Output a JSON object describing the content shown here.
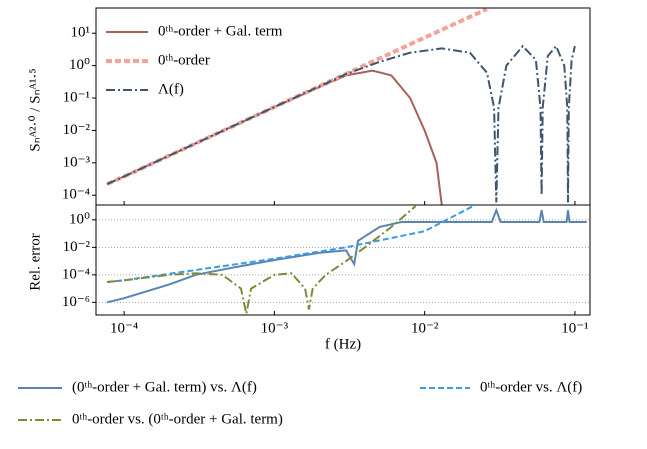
{
  "chart_data": [
    {
      "type": "line",
      "xscale": "log",
      "yscale": "log",
      "ylabel": "Sₙᴬ²·⁰ / Sₙᴬ¹·⁵",
      "xlim": [
        6.5e-05,
        0.126
      ],
      "ylim": [
        5e-05,
        60
      ],
      "yticks": [
        {
          "value": 0.0001,
          "label": "10⁻⁴"
        },
        {
          "value": 0.001,
          "label": "10⁻³"
        },
        {
          "value": 0.01,
          "label": "10⁻²"
        },
        {
          "value": 0.1,
          "label": "10⁻¹"
        },
        {
          "value": 1,
          "label": "10⁰"
        },
        {
          "value": 10,
          "label": "10¹"
        }
      ],
      "grid": false,
      "legend": "upper left",
      "series": [
        {
          "name": "0ᵗʰ-order + Gal. term",
          "color": "#a8605a",
          "linestyle": "solid",
          "x": [
            7.7e-05,
            0.0001,
            0.001,
            0.003,
            0.0045,
            0.006,
            0.008,
            0.01,
            0.012,
            0.013
          ],
          "values": [
            0.00022,
            0.00038,
            0.053,
            0.5,
            0.7,
            0.5,
            0.1,
            0.01,
            0.001,
            5e-05
          ]
        },
        {
          "name": "0ᵗʰ-order",
          "color": "#f4a39a",
          "linestyle": "dashed",
          "x": [
            7.7e-05,
            0.0001,
            0.001,
            0.01,
            0.026
          ],
          "values": [
            0.00022,
            0.00038,
            0.053,
            7.3,
            56
          ]
        },
        {
          "name": "Λ(f)",
          "color": "#3d5570",
          "linestyle": "dashdot",
          "x": [
            7.7e-05,
            0.0001,
            0.001,
            0.003,
            0.005,
            0.008,
            0.013,
            0.02,
            0.026,
            0.029,
            0.03,
            0.031,
            0.035,
            0.045,
            0.055,
            0.059,
            0.06,
            0.061,
            0.066,
            0.075,
            0.085,
            0.089,
            0.09,
            0.091,
            0.095,
            0.1
          ],
          "values": [
            0.00022,
            0.00038,
            0.053,
            0.55,
            1.3,
            2.5,
            3.4,
            2.5,
            0.6,
            0.05,
            6e-05,
            0.05,
            1,
            4,
            1.5,
            0.05,
            0.0001,
            0.05,
            2,
            4,
            1,
            0.05,
            6e-05,
            0.05,
            1.5,
            4
          ]
        }
      ]
    },
    {
      "type": "line",
      "xscale": "log",
      "yscale": "log",
      "xlabel": "f (Hz)",
      "ylabel": "Rel. error",
      "xlim": [
        6.5e-05,
        0.126
      ],
      "ylim": [
        1.2e-07,
        12
      ],
      "xticks": [
        {
          "value": 0.0001,
          "label": "10⁻⁴"
        },
        {
          "value": 0.001,
          "label": "10⁻³"
        },
        {
          "value": 0.01,
          "label": "10⁻²"
        },
        {
          "value": 0.1,
          "label": "10⁻¹"
        }
      ],
      "yticks": [
        {
          "value": 1e-06,
          "label": "10⁻⁶"
        },
        {
          "value": 0.0001,
          "label": "10⁻⁴"
        },
        {
          "value": 0.01,
          "label": "10⁻²"
        },
        {
          "value": 1,
          "label": "10⁰"
        }
      ],
      "grid": true,
      "legend": "below",
      "series": [
        {
          "name": "(0ᵗʰ-order + Gal. term) vs. Λ(f)",
          "color": "#5b84b1",
          "linestyle": "solid",
          "x": [
            7.7e-05,
            0.0001,
            0.0002,
            0.0003,
            0.0005,
            0.001,
            0.002,
            0.003,
            0.0034,
            0.0036,
            0.005,
            0.007,
            0.01,
            0.028,
            0.03,
            0.032,
            0.058,
            0.06,
            0.062,
            0.088,
            0.09,
            0.092,
            0.12
          ],
          "values": [
            1e-06,
            2e-06,
            2e-05,
            0.0001,
            0.0003,
            0.0012,
            0.004,
            0.006,
            0.0006,
            0.03,
            0.3,
            0.7,
            0.7,
            0.7,
            5,
            0.7,
            0.7,
            5,
            0.7,
            0.7,
            5,
            0.7,
            0.7
          ]
        },
        {
          "name": "0ᵗʰ-order vs. Λ(f)",
          "color": "#3a9be8",
          "linestyle": "dashed",
          "x": [
            7.7e-05,
            0.0001,
            0.001,
            0.003,
            0.01,
            0.021
          ],
          "values": [
            3e-05,
            4e-05,
            0.0015,
            0.01,
            0.15,
            10
          ]
        },
        {
          "name": "0ᵗʰ-order vs. (0ᵗʰ-order + Gal. term)",
          "color": "#7f8a3a",
          "linestyle": "dashdot",
          "x": [
            7.7e-05,
            0.0001,
            0.0002,
            0.0003,
            0.00045,
            0.0006,
            0.00065,
            0.0007,
            0.001,
            0.0013,
            0.0016,
            0.0017,
            0.0018,
            0.0022,
            0.003,
            0.004,
            0.006,
            0.0087
          ],
          "values": [
            3e-05,
            4e-05,
            0.0001,
            0.00013,
            0.0001,
            1e-05,
            1.5e-07,
            1e-05,
            0.0001,
            0.00013,
            1e-05,
            3e-07,
            1e-05,
            0.0001,
            0.001,
            0.01,
            0.3,
            10
          ]
        }
      ]
    }
  ]
}
